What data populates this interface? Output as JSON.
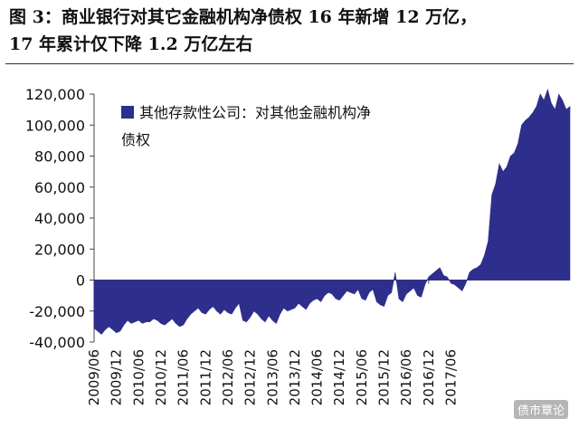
{
  "figure": {
    "title_line1": "图 3：商业银行对其它金融机构净债权 16 年新增 12 万亿，",
    "title_line2": "17 年累计仅下降 1.2 万亿左右",
    "watermark": "债市覃论"
  },
  "chart_data": {
    "type": "area",
    "title": "",
    "xlabel": "",
    "ylabel": "",
    "ylim": [
      -40000,
      120000
    ],
    "yticks": [
      120000,
      100000,
      80000,
      60000,
      40000,
      20000,
      0,
      -20000,
      -40000
    ],
    "ytick_labels": [
      "120,000",
      "100,000",
      "80,000",
      "60,000",
      "40,000",
      "20,000",
      "0",
      "-20,000",
      "-40,000"
    ],
    "xtick_labels": [
      "2009/06",
      "2009/12",
      "2010/06",
      "2010/12",
      "2011/06",
      "2011/12",
      "2012/06",
      "2012/12",
      "2013/06",
      "2013/12",
      "2014/06",
      "2014/12",
      "2015/06",
      "2015/12",
      "2016/06",
      "2016/12",
      "2017/06"
    ],
    "legend": "top-left",
    "grid": false,
    "color": "#2e2e8c",
    "series": [
      {
        "name": "其他存款性公司：对其他金融机构净债权",
        "x_start": "2009/06",
        "frequency": "monthly",
        "values": [
          -31000,
          -33000,
          -35000,
          -32000,
          -30000,
          -32000,
          -34000,
          -33000,
          -29000,
          -26000,
          -28000,
          -27000,
          -26000,
          -28000,
          -27000,
          -27000,
          -25000,
          -26000,
          -28000,
          -29000,
          -27000,
          -25000,
          -28000,
          -30000,
          -29000,
          -25000,
          -22000,
          -20000,
          -18000,
          -21000,
          -22000,
          -19000,
          -17000,
          -20000,
          -22000,
          -19000,
          -21000,
          -22000,
          -18000,
          -15000,
          -26000,
          -27000,
          -24000,
          -20000,
          -22000,
          -25000,
          -27000,
          -23000,
          -26000,
          -28000,
          -22000,
          -18000,
          -20000,
          -19000,
          -18000,
          -15000,
          -17000,
          -19000,
          -15000,
          -13000,
          -12000,
          -14000,
          -10000,
          -8000,
          -9000,
          -12000,
          -13000,
          -10000,
          -7000,
          -8000,
          -9000,
          -6000,
          -12000,
          -13000,
          -8000,
          -6000,
          -14000,
          -16000,
          -17000,
          -10000,
          -8000,
          5000,
          -12000,
          -14000,
          -9000,
          -7000,
          -5000,
          -10000,
          -11000,
          -3000,
          2000,
          4000,
          6000,
          8000,
          3000,
          2000,
          -2000,
          -3000,
          -5000,
          -7000,
          -2000,
          5000,
          7000,
          8000,
          10000,
          16000,
          25000,
          55000,
          62000,
          75000,
          70000,
          73000,
          80000,
          82000,
          88000,
          100000,
          103000,
          105000,
          108000,
          112000,
          120000,
          116000,
          123000,
          114000,
          110000,
          120000,
          116000,
          110000,
          112000
        ]
      }
    ]
  }
}
